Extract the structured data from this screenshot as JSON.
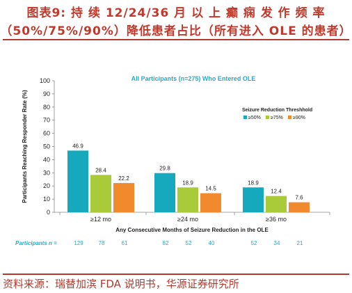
{
  "header": {
    "title_line_1": "图表9: 持 续 12/24/36 月 以 上 癫 痫 发 作 频 率",
    "title_line_2": "（50%/75%/90%）降低患者占比（所有进入 OLE 的患者）"
  },
  "footer": {
    "source": "资料来源：瑞替加滨 FDA 说明书，华源证券研究所"
  },
  "colors": {
    "series_50": "#16a8bd",
    "series_75": "#a9cb3a",
    "series_90": "#f08a2c",
    "title": "#2aa9c4",
    "header": "#c0392b"
  },
  "chart_data": {
    "type": "bar",
    "title": "All Participants (n=275) Who Entered OLE",
    "xlabel": "Any Consecutive Months of Seizure Reduction in the OLE",
    "ylabel": "Participants Reaching Responder Rate (%)",
    "ylim": [
      0,
      100
    ],
    "yticks": [
      "0",
      "10",
      "20",
      "30",
      "40",
      "50",
      "60",
      "70",
      "80",
      "90",
      "100"
    ],
    "categories": [
      "≥12 mo",
      "≥24 mo",
      "≥36 mo"
    ],
    "legend_title": "Seizure Reduction Threshhold",
    "legend_position": "top-right",
    "series": [
      {
        "name": "≥50%",
        "values": [
          46.9,
          29.8,
          18.9
        ],
        "labels": [
          "46.9",
          "29.8",
          "18.9"
        ]
      },
      {
        "name": "≥75%",
        "values": [
          28.4,
          18.9,
          12.4
        ],
        "labels": [
          "28.4",
          "18.9",
          "12.4"
        ]
      },
      {
        "name": "≥90%",
        "values": [
          22.2,
          14.5,
          7.6
        ],
        "labels": [
          "22.2",
          "14.5",
          "7.6"
        ]
      }
    ],
    "participants_label": "Participants n =",
    "participants_n": [
      "129",
      "78",
      "61",
      "82",
      "52",
      "40",
      "52",
      "34",
      "21"
    ]
  }
}
